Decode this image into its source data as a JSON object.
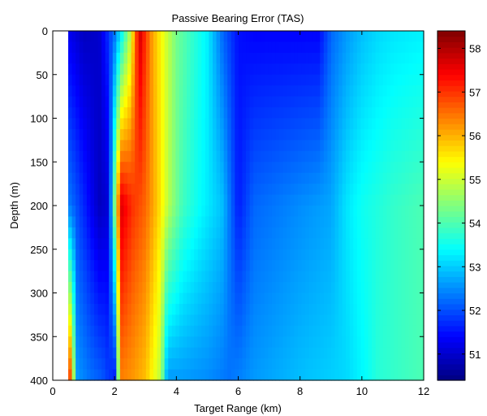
{
  "chart_data": {
    "type": "heatmap",
    "title": "Passive Bearing Error (TAS)",
    "xlabel": "Target Range (km)",
    "ylabel": "Depth (m)",
    "xlim": [
      0,
      12
    ],
    "ylim": [
      0,
      400
    ],
    "y_reversed": true,
    "x_ticks": [
      "0",
      "2",
      "4",
      "6",
      "8",
      "10",
      "12"
    ],
    "y_ticks": [
      "0",
      "50",
      "100",
      "150",
      "200",
      "250",
      "300",
      "350",
      "400"
    ],
    "colorbar": {
      "range": [
        50.4,
        58.4
      ],
      "ticks": [
        "51",
        "52",
        "53",
        "54",
        "55",
        "56",
        "57",
        "58"
      ],
      "colormap": "jet"
    },
    "data_extent_x_min_km": 0.5,
    "field": [
      {
        "depth": 0,
        "range_km": [
          0.5,
          1.0,
          1.5,
          2.0,
          2.2,
          2.5,
          2.8,
          3.2,
          3.6,
          4.0,
          4.5,
          5.0,
          5.5,
          6.0,
          6.5,
          7.0,
          7.5,
          8.0,
          8.6,
          9.0,
          9.5,
          10.0,
          10.5,
          11.0,
          12.0
        ],
        "value": [
          51.3,
          50.9,
          51.0,
          52.3,
          53.2,
          54.8,
          57.8,
          56.2,
          55.2,
          54.3,
          53.8,
          53.3,
          52.2,
          51.5,
          51.4,
          51.4,
          51.4,
          51.4,
          51.4,
          52.2,
          52.6,
          52.9,
          53.1,
          53.2,
          53.3
        ]
      },
      {
        "depth": 200,
        "range_km": [
          0.5,
          1.0,
          1.5,
          1.8,
          2.2,
          2.6,
          3.0,
          3.4,
          3.8,
          4.2,
          4.8,
          5.5,
          6.0,
          6.5,
          7.0,
          8.0,
          9.0,
          9.5,
          10.0,
          11.0,
          12.0
        ],
        "value": [
          52.4,
          51.7,
          50.9,
          51.1,
          57.7,
          57.0,
          56.6,
          55.8,
          54.7,
          53.9,
          53.4,
          52.9,
          51.6,
          52.2,
          52.3,
          52.5,
          52.7,
          53.2,
          53.5,
          53.8,
          54.0
        ]
      },
      {
        "depth": 400,
        "range_km": [
          0.5,
          0.8,
          1.2,
          1.6,
          2.0,
          2.2,
          2.6,
          3.0,
          3.5,
          3.7,
          4.2,
          5.0,
          5.7,
          6.5,
          8.0,
          9.5,
          10.1,
          10.5,
          11.0,
          12.0
        ],
        "value": [
          57.9,
          52.6,
          52.3,
          52.1,
          51.6,
          56.4,
          56.2,
          55.9,
          54.8,
          52.6,
          52.6,
          52.5,
          52.3,
          52.6,
          52.9,
          53.1,
          53.4,
          53.7,
          53.8,
          54.0
        ]
      }
    ]
  }
}
